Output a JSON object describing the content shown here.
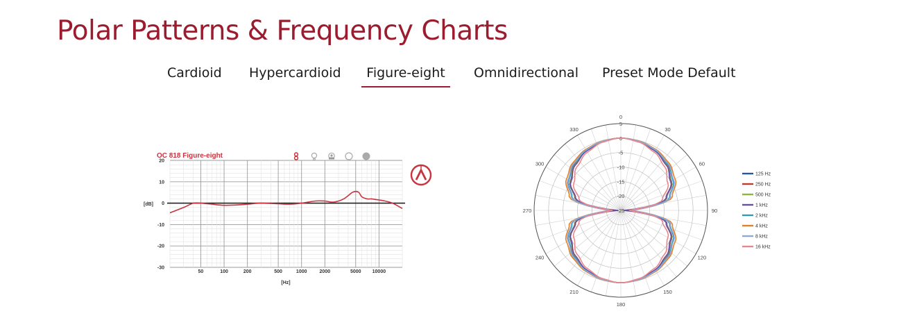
{
  "page": {
    "title": "Polar Patterns & Frequency Charts"
  },
  "tabs": [
    {
      "label": "Cardioid",
      "active": false
    },
    {
      "label": "Hypercardioid",
      "active": false
    },
    {
      "label": "Figure-eight",
      "active": true
    },
    {
      "label": "Omnidirectional",
      "active": false
    },
    {
      "label": "Preset Mode Default",
      "active": false
    }
  ],
  "colors": {
    "accent": "#9b1c2e",
    "frequency_curve": "#c8333f"
  },
  "pattern_icons": [
    "figure-eight-icon",
    "hypercardioid-icon",
    "cardioid-icon",
    "omnidirectional-icon",
    "preset-icon"
  ],
  "chart_data": [
    {
      "type": "line",
      "title": "OC 818 Figure-eight",
      "xlabel": "[Hz]",
      "ylabel": "[dB]",
      "x_scale": "log",
      "xlim": [
        20,
        20000
      ],
      "ylim": [
        -30,
        20
      ],
      "x_ticks": [
        50,
        100,
        200,
        500,
        1000,
        2000,
        5000,
        10000
      ],
      "y_ticks": [
        20,
        10,
        0,
        -10,
        -20,
        -30
      ],
      "grid": true,
      "series": [
        {
          "x": [
            20,
            30,
            40,
            50,
            70,
            100,
            150,
            200,
            300,
            500,
            700,
            1000,
            1500,
            2000,
            2500,
            3000,
            3500,
            4000,
            4500,
            5000,
            5500,
            6000,
            7000,
            8000,
            10000,
            12000,
            15000,
            20000
          ],
          "values": [
            -4.5,
            -2,
            0,
            0,
            -0.5,
            -1,
            -0.8,
            -0.5,
            0,
            -0.3,
            -0.5,
            0,
            1,
            1,
            0.5,
            1,
            2,
            3.5,
            5,
            5.5,
            5,
            3,
            2,
            2,
            1.5,
            1,
            0,
            -2.5
          ]
        }
      ]
    },
    {
      "type": "polar",
      "angle_ticks": [
        0,
        30,
        60,
        90,
        120,
        150,
        180,
        210,
        240,
        270,
        300,
        330
      ],
      "radial_ticks": [
        5,
        0,
        -5,
        -10,
        -15,
        -20,
        -25
      ],
      "radial_range": [
        -25,
        5
      ],
      "grid": true,
      "legend_position": "right",
      "series": [
        {
          "name": "125 Hz",
          "color": "#1f5a9e",
          "angles": [
            0,
            15,
            30,
            45,
            60,
            75,
            90,
            105,
            120,
            135,
            150,
            165,
            180
          ],
          "values": [
            0,
            -0.4,
            -1.2,
            -2.6,
            -4.8,
            -8.5,
            -23,
            -8.5,
            -4.8,
            -2.6,
            -1.2,
            -0.4,
            0
          ]
        },
        {
          "name": "250 Hz",
          "color": "#c0392b",
          "angles": [
            0,
            15,
            30,
            45,
            60,
            75,
            90,
            105,
            120,
            135,
            150,
            165,
            180
          ],
          "values": [
            0,
            -0.4,
            -1.2,
            -2.6,
            -4.9,
            -8.6,
            -23,
            -8.6,
            -4.9,
            -2.6,
            -1.2,
            -0.4,
            0
          ]
        },
        {
          "name": "500 Hz",
          "color": "#8bb83c",
          "angles": [
            0,
            15,
            30,
            45,
            60,
            75,
            90,
            105,
            120,
            135,
            150,
            165,
            180
          ],
          "values": [
            0,
            -0.4,
            -1.2,
            -2.7,
            -5,
            -8.7,
            -23,
            -8.7,
            -5,
            -2.7,
            -1.2,
            -0.4,
            0
          ]
        },
        {
          "name": "1 kHz",
          "color": "#6a4c9c",
          "angles": [
            0,
            15,
            30,
            45,
            60,
            75,
            90,
            105,
            120,
            135,
            150,
            165,
            180
          ],
          "values": [
            0,
            -0.4,
            -1.3,
            -2.8,
            -5.1,
            -8.8,
            -24,
            -8.8,
            -5.1,
            -2.8,
            -1.3,
            -0.4,
            0
          ]
        },
        {
          "name": "2 kHz",
          "color": "#2e9bbd",
          "angles": [
            0,
            15,
            30,
            45,
            60,
            75,
            90,
            105,
            120,
            135,
            150,
            165,
            180
          ],
          "values": [
            0,
            -0.3,
            -1,
            -2.2,
            -4.2,
            -7.5,
            -22,
            -7.5,
            -4.2,
            -2.2,
            -1,
            -0.3,
            0
          ]
        },
        {
          "name": "4 kHz",
          "color": "#e67e22",
          "angles": [
            0,
            15,
            30,
            45,
            60,
            75,
            90,
            105,
            120,
            135,
            150,
            165,
            180
          ],
          "values": [
            0,
            -0.2,
            -0.7,
            -1.6,
            -3.3,
            -6.5,
            -21,
            -6.5,
            -3.3,
            -1.6,
            -0.7,
            -0.2,
            0
          ]
        },
        {
          "name": "8 kHz",
          "color": "#8fa8d8",
          "angles": [
            0,
            15,
            30,
            45,
            60,
            75,
            90,
            105,
            120,
            135,
            150,
            165,
            180
          ],
          "values": [
            0,
            -0.3,
            -0.9,
            -2,
            -3.9,
            -7.2,
            -21,
            -7.2,
            -3.9,
            -2,
            -0.9,
            -0.3,
            0
          ]
        },
        {
          "name": "16 kHz",
          "color": "#e8868c",
          "angles": [
            0,
            15,
            30,
            45,
            60,
            75,
            90,
            105,
            120,
            135,
            150,
            165,
            180
          ],
          "values": [
            0,
            -0.6,
            -1.8,
            -3.6,
            -6.2,
            -10,
            -22,
            -10,
            -6.2,
            -3.6,
            -1.8,
            -0.6,
            0
          ]
        }
      ]
    }
  ]
}
